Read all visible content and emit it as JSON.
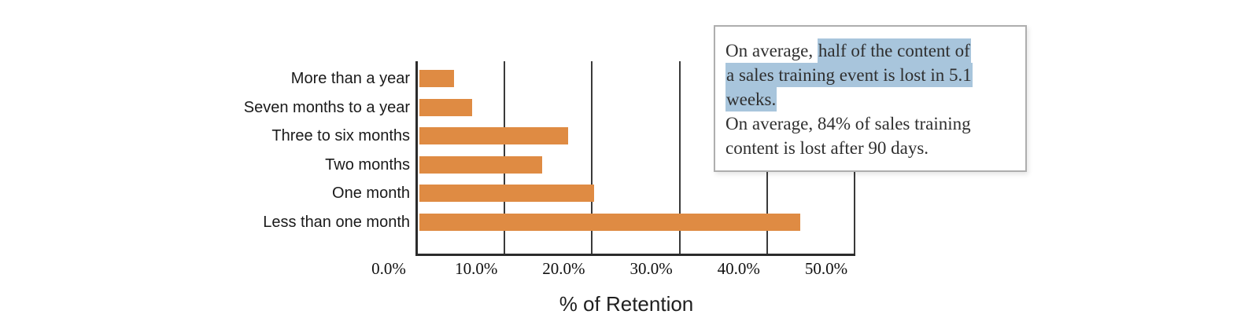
{
  "chart_data": {
    "type": "bar",
    "orientation": "horizontal",
    "categories": [
      "More than a year",
      "Seven months to a year",
      "Three to six months",
      "Two months",
      "One month",
      "Less than one month"
    ],
    "values": [
      4,
      6,
      17,
      14,
      20,
      43.5
    ],
    "value_unit": "%",
    "xlabel": "% of Retention",
    "x_ticks": [
      "0.0%",
      "10.0%",
      "20.0%",
      "30.0%",
      "40.0%",
      "50.0%"
    ],
    "xlim": [
      0,
      50
    ],
    "grid": "vertical-only",
    "legend": "none",
    "bar_color": "#df8b43"
  },
  "annotation": {
    "full_text": [
      "On average, half of the content of a sales training event is lost in 5.1 weeks.",
      "On average, 84% of sales training content is lost after 90 days."
    ],
    "highlighted_text": "half of the content of a sales training event is lost in 5.1 weeks.",
    "lines": [
      {
        "segments": [
          {
            "text": "On average, ",
            "highlighted": false
          },
          {
            "text": "half of the content of",
            "highlighted": true
          }
        ]
      },
      {
        "segments": [
          {
            "text": "a sales training event is lost in 5.1",
            "highlighted": true
          }
        ]
      },
      {
        "segments": [
          {
            "text": "weeks.",
            "highlighted": true
          }
        ]
      },
      {
        "segments": [
          {
            "text": "On average, 84% of sales training",
            "highlighted": false
          }
        ]
      },
      {
        "segments": [
          {
            "text": "content is lost after 90 days.",
            "highlighted": false
          }
        ]
      }
    ]
  },
  "colors": {
    "bar": "#df8b43",
    "highlight": "#a8c5dc",
    "axis": "#2b2b2b",
    "gridline": "#3a3a3a",
    "callout_border": "#aeaeae",
    "text": "#1a1a1a"
  }
}
